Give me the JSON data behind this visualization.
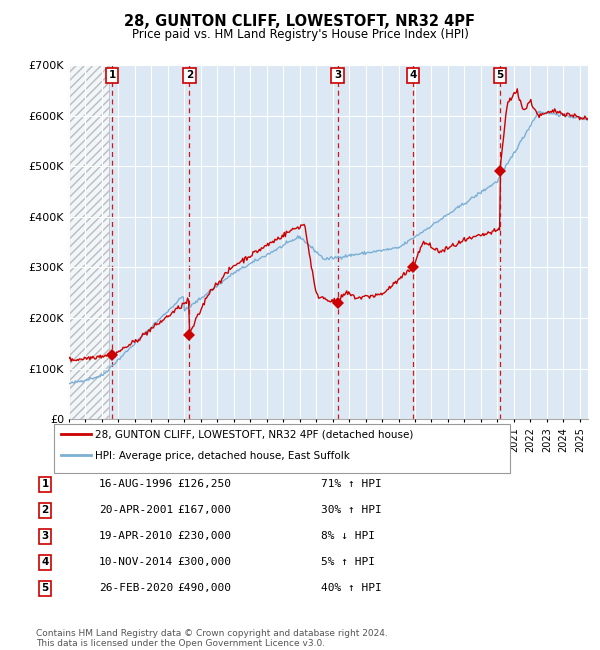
{
  "title": "28, GUNTON CLIFF, LOWESTOFT, NR32 4PF",
  "subtitle": "Price paid vs. HM Land Registry's House Price Index (HPI)",
  "ylim": [
    0,
    700000
  ],
  "yticks": [
    0,
    100000,
    200000,
    300000,
    400000,
    500000,
    600000,
    700000
  ],
  "ytick_labels": [
    "£0",
    "£100K",
    "£200K",
    "£300K",
    "£400K",
    "£500K",
    "£600K",
    "£700K"
  ],
  "xlim_start": 1994.0,
  "xlim_end": 2025.5,
  "background_color": "#dce9f5",
  "hpi_line_color": "#7bafd4",
  "price_line_color": "#cc0000",
  "marker_color": "#cc0000",
  "dashed_line_color": "#cc0000",
  "grid_color": "#ffffff",
  "sale_points": [
    {
      "num": 1,
      "year": 1996.625,
      "price": 126250,
      "label": "1"
    },
    {
      "num": 2,
      "year": 2001.3,
      "price": 167000,
      "label": "2"
    },
    {
      "num": 3,
      "year": 2010.3,
      "price": 230000,
      "label": "3"
    },
    {
      "num": 4,
      "year": 2014.87,
      "price": 300000,
      "label": "4"
    },
    {
      "num": 5,
      "year": 2020.15,
      "price": 490000,
      "label": "5"
    }
  ],
  "legend_entries": [
    {
      "label": "28, GUNTON CLIFF, LOWESTOFT, NR32 4PF (detached house)",
      "color": "#cc0000"
    },
    {
      "label": "HPI: Average price, detached house, East Suffolk",
      "color": "#7bafd4"
    }
  ],
  "table_rows": [
    {
      "num": "1",
      "date": "16-AUG-1996",
      "price": "£126,250",
      "change": "71% ↑ HPI"
    },
    {
      "num": "2",
      "date": "20-APR-2001",
      "price": "£167,000",
      "change": "30% ↑ HPI"
    },
    {
      "num": "3",
      "date": "19-APR-2010",
      "price": "£230,000",
      "change": "8% ↓ HPI"
    },
    {
      "num": "4",
      "date": "10-NOV-2014",
      "price": "£300,000",
      "change": "5% ↑ HPI"
    },
    {
      "num": "5",
      "date": "26-FEB-2020",
      "price": "£490,000",
      "change": "40% ↑ HPI"
    }
  ],
  "footnote": "Contains HM Land Registry data © Crown copyright and database right 2024.\nThis data is licensed under the Open Government Licence v3.0."
}
